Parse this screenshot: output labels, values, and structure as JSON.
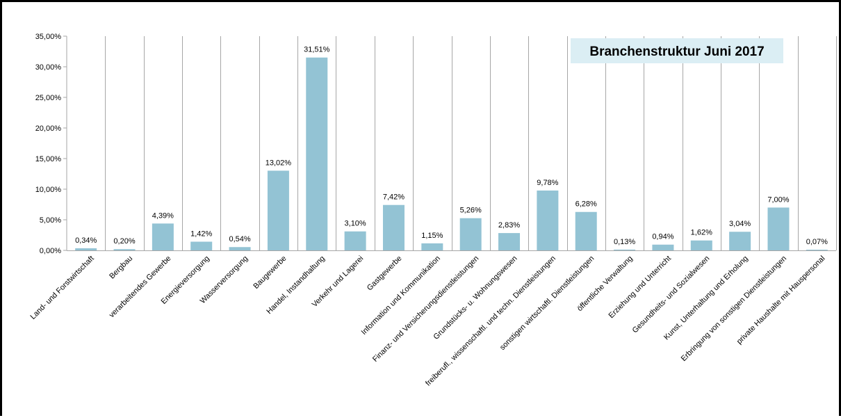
{
  "chart_data": {
    "type": "bar",
    "title": "Branchenstruktur Juni 2017",
    "xlabel": "",
    "ylabel": "",
    "ylim": [
      0,
      35
    ],
    "yticks": [
      "0,00%",
      "5,00%",
      "10,00%",
      "15,00%",
      "20,00%",
      "25,00%",
      "30,00%",
      "35,00%"
    ],
    "grid": "vertical separators",
    "legend": "none",
    "bar_color": "#93c3d4",
    "categories": [
      "Land- und Forstwirtschaft",
      "Bergbau",
      "verarbeitendes Gewerbe",
      "Energieversorgung",
      "Wasserversorgung",
      "Baugewerbe",
      "Handel, Instandhaltung",
      "Verkehr und Lagerei",
      "Gastgewerbe",
      "Information und Kommunikation",
      "Finanz- und Versicherungsdienstleistungen",
      "Grundstücks- u. Wohnungswesen",
      "freiberufl., wissenschaftl. und techn. Dienstleistungen",
      "sonstigen wirtschaftl. Dienstleistungen",
      "öffentliche Verwaltung",
      "Erziehung und Unterricht",
      "Gesundheits- und Sozialwesen",
      "Kunst, Unterhaltung und Erholung",
      "Erbringung von sonstigen Dienstleistungen",
      "private Haushalte mit Hauspersonal"
    ],
    "values": [
      0.34,
      0.2,
      4.39,
      1.42,
      0.54,
      13.02,
      31.51,
      3.1,
      7.42,
      1.15,
      5.26,
      2.83,
      9.78,
      6.28,
      0.13,
      0.94,
      1.62,
      3.04,
      7.0,
      0.07
    ],
    "data_labels": [
      "0,34%",
      "0,20%",
      "4,39%",
      "1,42%",
      "0,54%",
      "13,02%",
      "31,51%",
      "3,10%",
      "7,42%",
      "1,15%",
      "5,26%",
      "2,83%",
      "9,78%",
      "6,28%",
      "0,13%",
      "0,94%",
      "1,62%",
      "3,04%",
      "7,00%",
      "0,07%"
    ]
  }
}
